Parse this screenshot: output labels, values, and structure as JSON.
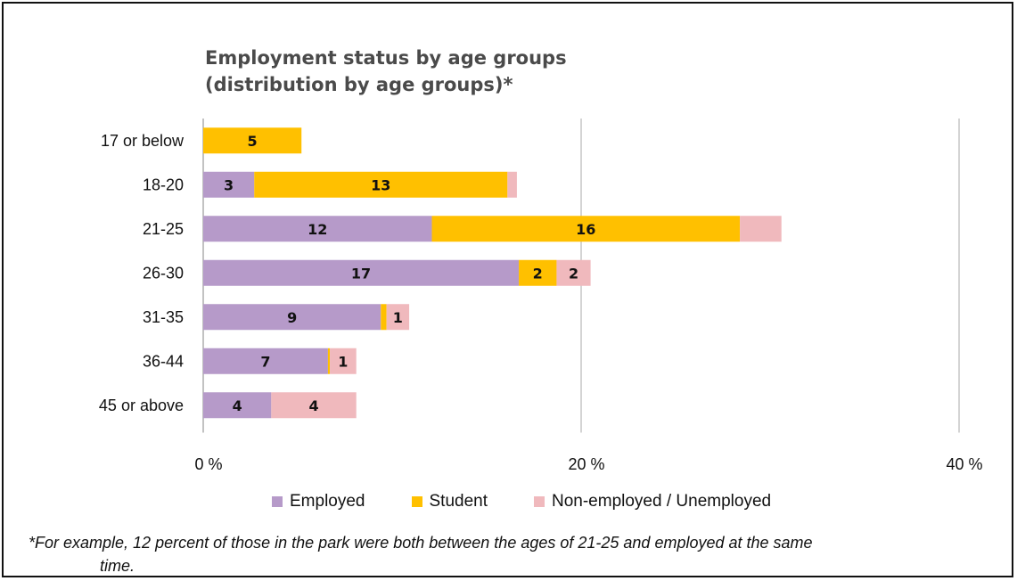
{
  "chart_data": {
    "type": "bar",
    "orientation": "horizontal",
    "stacked": true,
    "title_line1": "Employment status by age groups",
    "title_line2": "(distribution by age groups)*",
    "categories": [
      "17 or below",
      "18-20",
      "21-25",
      "26-30",
      "31-35",
      "36-44",
      "45 or above"
    ],
    "series": [
      {
        "name": "Employed",
        "color": "#b69ac9",
        "values": [
          0,
          2.7,
          12.1,
          16.7,
          9.4,
          6.6,
          3.6
        ],
        "labels": [
          "",
          "3",
          "12",
          "17",
          "9",
          "7",
          "4"
        ]
      },
      {
        "name": "Student",
        "color": "#ffc000",
        "values": [
          5.2,
          13.4,
          16.3,
          2.0,
          0.3,
          0.1,
          0
        ],
        "labels": [
          "5",
          "13",
          "16",
          "2",
          "",
          "",
          ""
        ]
      },
      {
        "name": "Non-employed / Unemployed",
        "color": "#f0b9bd",
        "values": [
          0,
          0.5,
          2.2,
          1.8,
          1.2,
          1.4,
          4.5
        ],
        "labels": [
          "",
          "",
          "",
          "2",
          "1",
          "1",
          "4"
        ]
      }
    ],
    "xlim": [
      0,
      40
    ],
    "xticks": [
      {
        "value": 0,
        "label": "0 %"
      },
      {
        "value": 20,
        "label": "20 %"
      },
      {
        "value": 40,
        "label": "40 %"
      }
    ],
    "grid": true,
    "legend_position": "bottom",
    "footnote_line1": "*For example, 12 percent of those in the park were both between the ages of 21-25 and employed at the same",
    "footnote_line2": "time."
  }
}
